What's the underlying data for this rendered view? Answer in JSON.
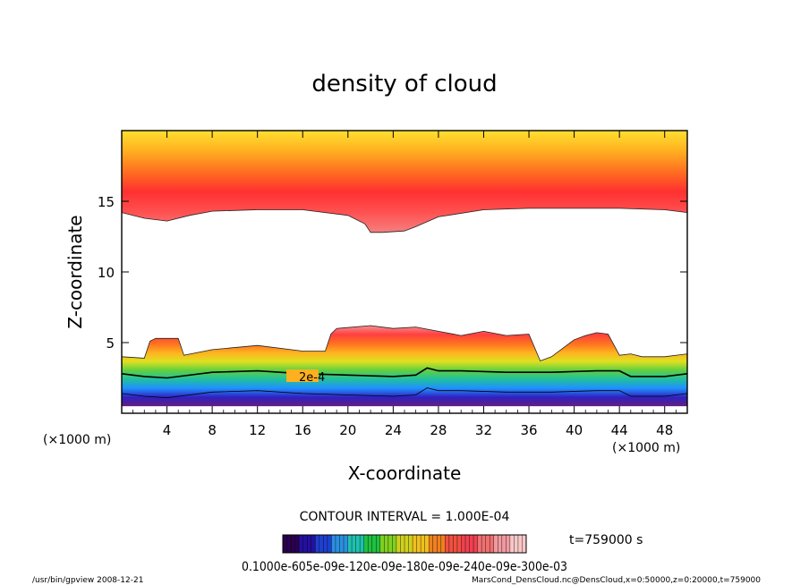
{
  "chart_data": {
    "type": "heatmap",
    "title": "density of cloud",
    "xlabel": "X-coordinate",
    "ylabel": "Z-coordinate",
    "x_unit": "(×1000 m)",
    "z_unit": "(×1000 m)",
    "xlim": [
      0,
      50
    ],
    "ylim": [
      0,
      20
    ],
    "x_ticks": [
      4,
      8,
      12,
      16,
      20,
      24,
      28,
      32,
      36,
      40,
      44,
      48
    ],
    "y_ticks": [
      5,
      10,
      15
    ],
    "contour_interval_text": "CONTOUR INTERVAL = 1.000E-04",
    "contour_label": "2e-4",
    "time_text": "t=759000 s",
    "colorbar_label_text": "0.1000e-605e-09e-120e-09e-180e-09e-240e-09e-300e-03",
    "colorbar_colors": [
      "#2a004f",
      "#2410a0",
      "#1e40d0",
      "#2a90e0",
      "#20c0b0",
      "#20c040",
      "#80d020",
      "#d0d020",
      "#f0c020",
      "#f08020",
      "#f05040",
      "#f04050",
      "#f07070",
      "#f09aa0",
      "#f8c8c8"
    ],
    "upper_band": {
      "z_bottom_km": 14.3,
      "z_top_km": 20,
      "colors_top_to_bottom": [
        "#ffe030",
        "#ffb020",
        "#ff7020",
        "#ff3030",
        "#ff5050",
        "#f58080"
      ]
    },
    "lower_band": {
      "z_bottom_km": 0.5,
      "z_top_km": 6.2,
      "colors_top_to_bottom": [
        "#f59090",
        "#ff4040",
        "#ff7020",
        "#ffb020",
        "#e0e020",
        "#60d040",
        "#20c0a0",
        "#2090ff",
        "#3020c0",
        "#602080"
      ]
    },
    "upper_boundary_profile": {
      "x": [
        0,
        2,
        4,
        6,
        8,
        12,
        16,
        20,
        21.5,
        22,
        23,
        25,
        26,
        28,
        32,
        36,
        40,
        44,
        48,
        50
      ],
      "z": [
        14.2,
        13.8,
        13.6,
        14.0,
        14.3,
        14.4,
        14.4,
        14.0,
        13.4,
        12.8,
        12.8,
        12.9,
        13.2,
        13.9,
        14.4,
        14.5,
        14.5,
        14.5,
        14.4,
        14.2
      ]
    },
    "lower_boundary_profile": {
      "x": [
        0,
        2,
        2.5,
        3,
        5,
        5.5,
        8,
        12,
        16,
        18,
        18.5,
        19,
        22,
        24,
        26,
        28,
        30,
        32,
        34,
        36,
        37,
        38,
        40,
        41,
        42,
        43,
        44,
        45,
        46,
        48,
        50
      ],
      "z": [
        4.0,
        3.9,
        5.1,
        5.3,
        5.3,
        4.1,
        4.5,
        4.8,
        4.4,
        4.4,
        5.6,
        6.0,
        6.2,
        6.0,
        6.1,
        5.8,
        5.5,
        5.8,
        5.5,
        5.6,
        3.7,
        4.0,
        5.2,
        5.5,
        5.7,
        5.6,
        4.1,
        4.2,
        4.0,
        4.0,
        4.2
      ]
    },
    "contour_2e4_profile": {
      "x": [
        0,
        2,
        4,
        8,
        12,
        16,
        20,
        24,
        26,
        27,
        28,
        30,
        34,
        38,
        42,
        44,
        45,
        48,
        50
      ],
      "z": [
        2.8,
        2.6,
        2.5,
        2.9,
        3.0,
        2.8,
        2.7,
        2.6,
        2.7,
        3.2,
        3.0,
        3.0,
        2.9,
        2.9,
        3.0,
        3.0,
        2.6,
        2.6,
        2.8
      ]
    },
    "footer_left": "/usr/bin/gpview   2008-12-21",
    "footer_right": "MarsCond_DensCloud.nc@DensCloud,x=0:50000,z=0:20000,t=759000"
  }
}
